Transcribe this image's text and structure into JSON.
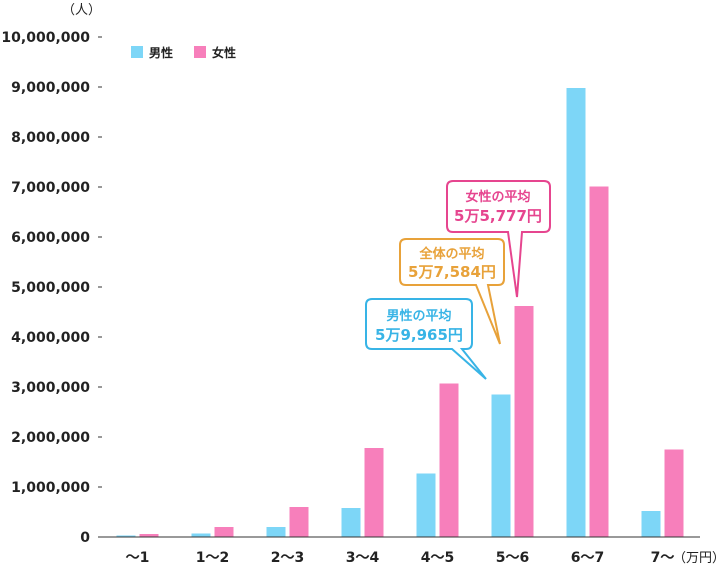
{
  "chart_data": {
    "type": "bar",
    "y_unit": "（人）",
    "x_unit": "（万円）",
    "categories": [
      "～1",
      "1～2",
      "2～3",
      "3～4",
      "4～5",
      "5～6",
      "6～7",
      "7～"
    ],
    "ylim": [
      0,
      10000000
    ],
    "yticks": [
      0,
      1000000,
      2000000,
      3000000,
      4000000,
      5000000,
      6000000,
      7000000,
      8000000,
      9000000,
      10000000
    ],
    "ytick_labels": [
      "0",
      "1,000,000",
      "2,000,000",
      "3,000,000",
      "4,000,000",
      "5,000,000",
      "6,000,000",
      "7,000,000",
      "8,000,000",
      "9,000,000",
      "10,000,000"
    ],
    "legend_position": "top-left",
    "grid": false,
    "series": [
      {
        "name": "男性",
        "color": "#7dd6f7",
        "values": [
          30000,
          70000,
          200000,
          580000,
          1270000,
          2850000,
          8980000,
          520000
        ]
      },
      {
        "name": "女性",
        "color": "#f77fbb",
        "values": [
          60000,
          200000,
          600000,
          1780000,
          3070000,
          4620000,
          7010000,
          1750000
        ]
      }
    ],
    "annotations": [
      {
        "title": "男性の平均",
        "value": "5万9,965円",
        "color": "#38b4e6"
      },
      {
        "title": "全体の平均",
        "value": "5万7,584円",
        "color": "#e8a23a"
      },
      {
        "title": "女性の平均",
        "value": "5万5,777円",
        "color": "#e6458f"
      }
    ]
  }
}
